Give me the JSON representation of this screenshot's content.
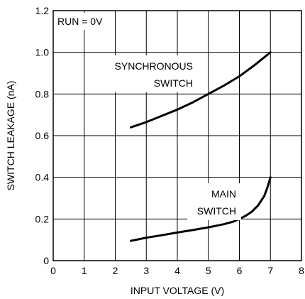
{
  "chart_data": {
    "type": "line",
    "title": "",
    "xlabel": "INPUT VOLTAGE (V)",
    "ylabel": "SWITCH LEAKAGE (nA)",
    "xlim": [
      0,
      8
    ],
    "ylim": [
      0,
      1.2
    ],
    "x_ticks": [
      0,
      1,
      2,
      3,
      4,
      5,
      6,
      7,
      8
    ],
    "x_tick_labels": [
      "0",
      "1",
      "2",
      "3",
      "4",
      "5",
      "6",
      "7",
      "8"
    ],
    "y_ticks": [
      0,
      0.2,
      0.4,
      0.6,
      0.8,
      1.0,
      1.2
    ],
    "y_tick_labels": [
      "0",
      "0.2",
      "0.4",
      "0.6",
      "0.8",
      "1.0",
      "1.2"
    ],
    "grid": true,
    "legend": "none",
    "annotations": {
      "condition": "RUN = 0V",
      "synchronous_line1": "SYNCHRONOUS",
      "synchronous_line2": "SWITCH",
      "main_line1": "MAIN",
      "main_line2": "SWITCH"
    },
    "series": [
      {
        "x": [
          2.5,
          3.0,
          3.5,
          4.0,
          4.5,
          5.0,
          5.5,
          6.0,
          6.5,
          7.0
        ],
        "y": [
          0.64,
          0.665,
          0.695,
          0.725,
          0.76,
          0.8,
          0.84,
          0.885,
          0.94,
          1.0
        ]
      },
      {
        "x": [
          2.5,
          3.0,
          3.5,
          4.0,
          4.5,
          5.0,
          5.5,
          5.8,
          6.0,
          6.2,
          6.4,
          6.6,
          6.8,
          6.9,
          7.0
        ],
        "y": [
          0.095,
          0.11,
          0.122,
          0.135,
          0.147,
          0.16,
          0.175,
          0.187,
          0.2,
          0.215,
          0.235,
          0.265,
          0.31,
          0.35,
          0.4
        ]
      }
    ]
  }
}
